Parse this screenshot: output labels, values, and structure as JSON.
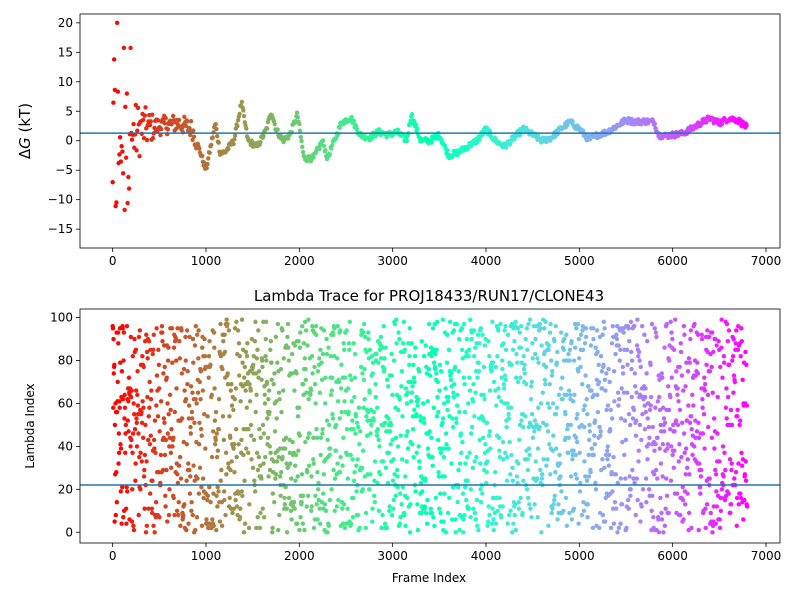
{
  "chart_data": [
    {
      "type": "scatter",
      "title": "",
      "xlabel": "",
      "ylabel": "ΔG (kT)",
      "ylabel_parts": {
        "delta": "Δ",
        "var": "G",
        "unit": " (kT)"
      },
      "xlim": [
        -350,
        7150
      ],
      "ylim": [
        -18.2,
        21.5
      ],
      "x_ticks": [
        0,
        1000,
        2000,
        3000,
        4000,
        5000,
        6000,
        7000
      ],
      "y_ticks": [
        -15,
        -10,
        -5,
        0,
        5,
        10,
        15,
        20
      ],
      "hline": 1.3,
      "hline_color": "#1f77b4",
      "colormap": "rainbow",
      "grid": false,
      "legend": "none",
      "frames_total": 6800,
      "keypoints": [
        [
          0,
          0
        ],
        [
          150,
          0
        ],
        [
          300,
          2
        ],
        [
          500,
          2.5
        ],
        [
          700,
          3
        ],
        [
          850,
          2
        ],
        [
          950,
          -2.5
        ],
        [
          1000,
          -5
        ],
        [
          1050,
          -1
        ],
        [
          1100,
          3
        ],
        [
          1150,
          -2
        ],
        [
          1200,
          -2
        ],
        [
          1300,
          0
        ],
        [
          1380,
          6.5
        ],
        [
          1450,
          0
        ],
        [
          1550,
          -1
        ],
        [
          1650,
          2
        ],
        [
          1700,
          5
        ],
        [
          1750,
          2
        ],
        [
          1820,
          0
        ],
        [
          1900,
          1
        ],
        [
          1980,
          4.5
        ],
        [
          2050,
          -3
        ],
        [
          2150,
          -3
        ],
        [
          2250,
          0
        ],
        [
          2300,
          -3
        ],
        [
          2350,
          -1
        ],
        [
          2450,
          3
        ],
        [
          2550,
          4
        ],
        [
          2650,
          1
        ],
        [
          2750,
          0.5
        ],
        [
          2850,
          1.5
        ],
        [
          2950,
          1
        ],
        [
          3050,
          1.5
        ],
        [
          3150,
          0
        ],
        [
          3200,
          4.5
        ],
        [
          3300,
          0
        ],
        [
          3400,
          0
        ],
        [
          3500,
          1
        ],
        [
          3600,
          -2.5
        ],
        [
          3700,
          -2
        ],
        [
          3800,
          -1
        ],
        [
          3900,
          0
        ],
        [
          4000,
          2
        ],
        [
          4100,
          0
        ],
        [
          4200,
          -1
        ],
        [
          4300,
          0.5
        ],
        [
          4400,
          2
        ],
        [
          4500,
          1
        ],
        [
          4600,
          0
        ],
        [
          4700,
          0.5
        ],
        [
          4800,
          2
        ],
        [
          4900,
          3.2
        ],
        [
          5000,
          2
        ],
        [
          5100,
          0.2
        ],
        [
          5200,
          1
        ],
        [
          5300,
          1.5
        ],
        [
          5400,
          2.5
        ],
        [
          5500,
          3.5
        ],
        [
          5600,
          3.2
        ],
        [
          5700,
          3.3
        ],
        [
          5800,
          3.2
        ],
        [
          5850,
          1
        ],
        [
          5900,
          0.8
        ],
        [
          6000,
          1
        ],
        [
          6100,
          1.2
        ],
        [
          6200,
          2
        ],
        [
          6300,
          3
        ],
        [
          6400,
          3.8
        ],
        [
          6500,
          3
        ],
        [
          6600,
          3.8
        ],
        [
          6700,
          3.5
        ],
        [
          6800,
          2.2
        ]
      ]
    },
    {
      "type": "scatter",
      "title": "Lambda Trace for PROJ18433/RUN17/CLONE43",
      "xlabel": "Frame Index",
      "ylabel": "Lambda Index",
      "xlim": [
        -350,
        7150
      ],
      "ylim": [
        -5,
        104
      ],
      "x_ticks": [
        0,
        1000,
        2000,
        3000,
        4000,
        5000,
        6000,
        7000
      ],
      "y_ticks": [
        0,
        20,
        40,
        60,
        80,
        100
      ],
      "hline": 22,
      "hline_color": "#1f77b4",
      "colormap": "rainbow",
      "grid": false,
      "legend": "none",
      "frames_total": 6800,
      "lambda_range": [
        0,
        99
      ]
    }
  ]
}
